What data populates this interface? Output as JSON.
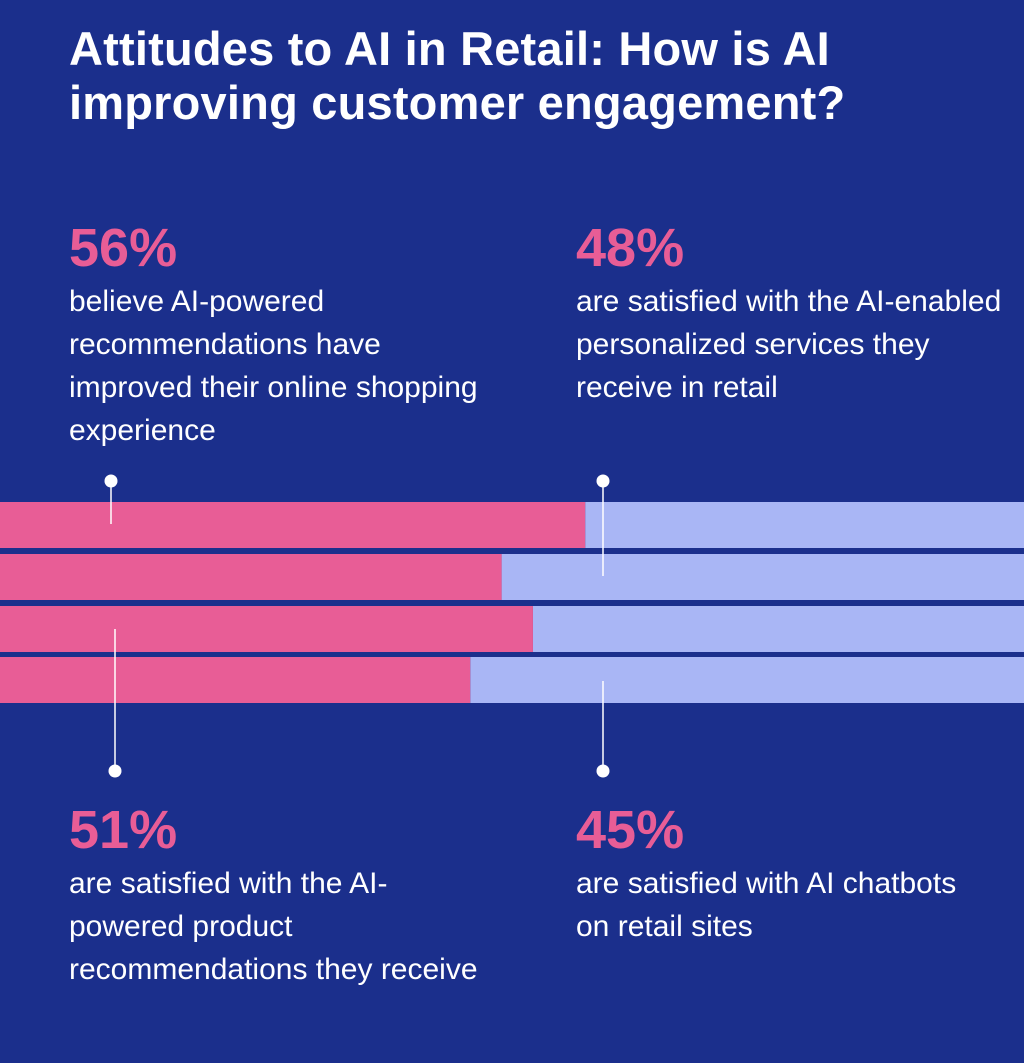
{
  "title": "Attitudes to AI in Retail: How is AI improving customer engagement?",
  "colors": {
    "background": "#1b2f8c",
    "highlight": "#e85d96",
    "remainder": "#a9b6f5",
    "text": "#ffffff"
  },
  "stats": [
    {
      "value": "56%",
      "text": "believe AI-powered recommendations have improved their online shopping experience"
    },
    {
      "value": "48%",
      "text": "are satisfied with the AI-enabled personalized services they receive in retail"
    },
    {
      "value": "51%",
      "text": "are satisfied with the AI-powered product recommendations they receive"
    },
    {
      "value": "45%",
      "text": "are satisfied with AI chatbots on retail sites"
    }
  ],
  "chart_data": {
    "type": "bar",
    "orientation": "horizontal",
    "stacked_to": 100,
    "values": [
      56,
      48,
      51,
      45
    ],
    "xlim": [
      0,
      100
    ],
    "grid": false
  }
}
